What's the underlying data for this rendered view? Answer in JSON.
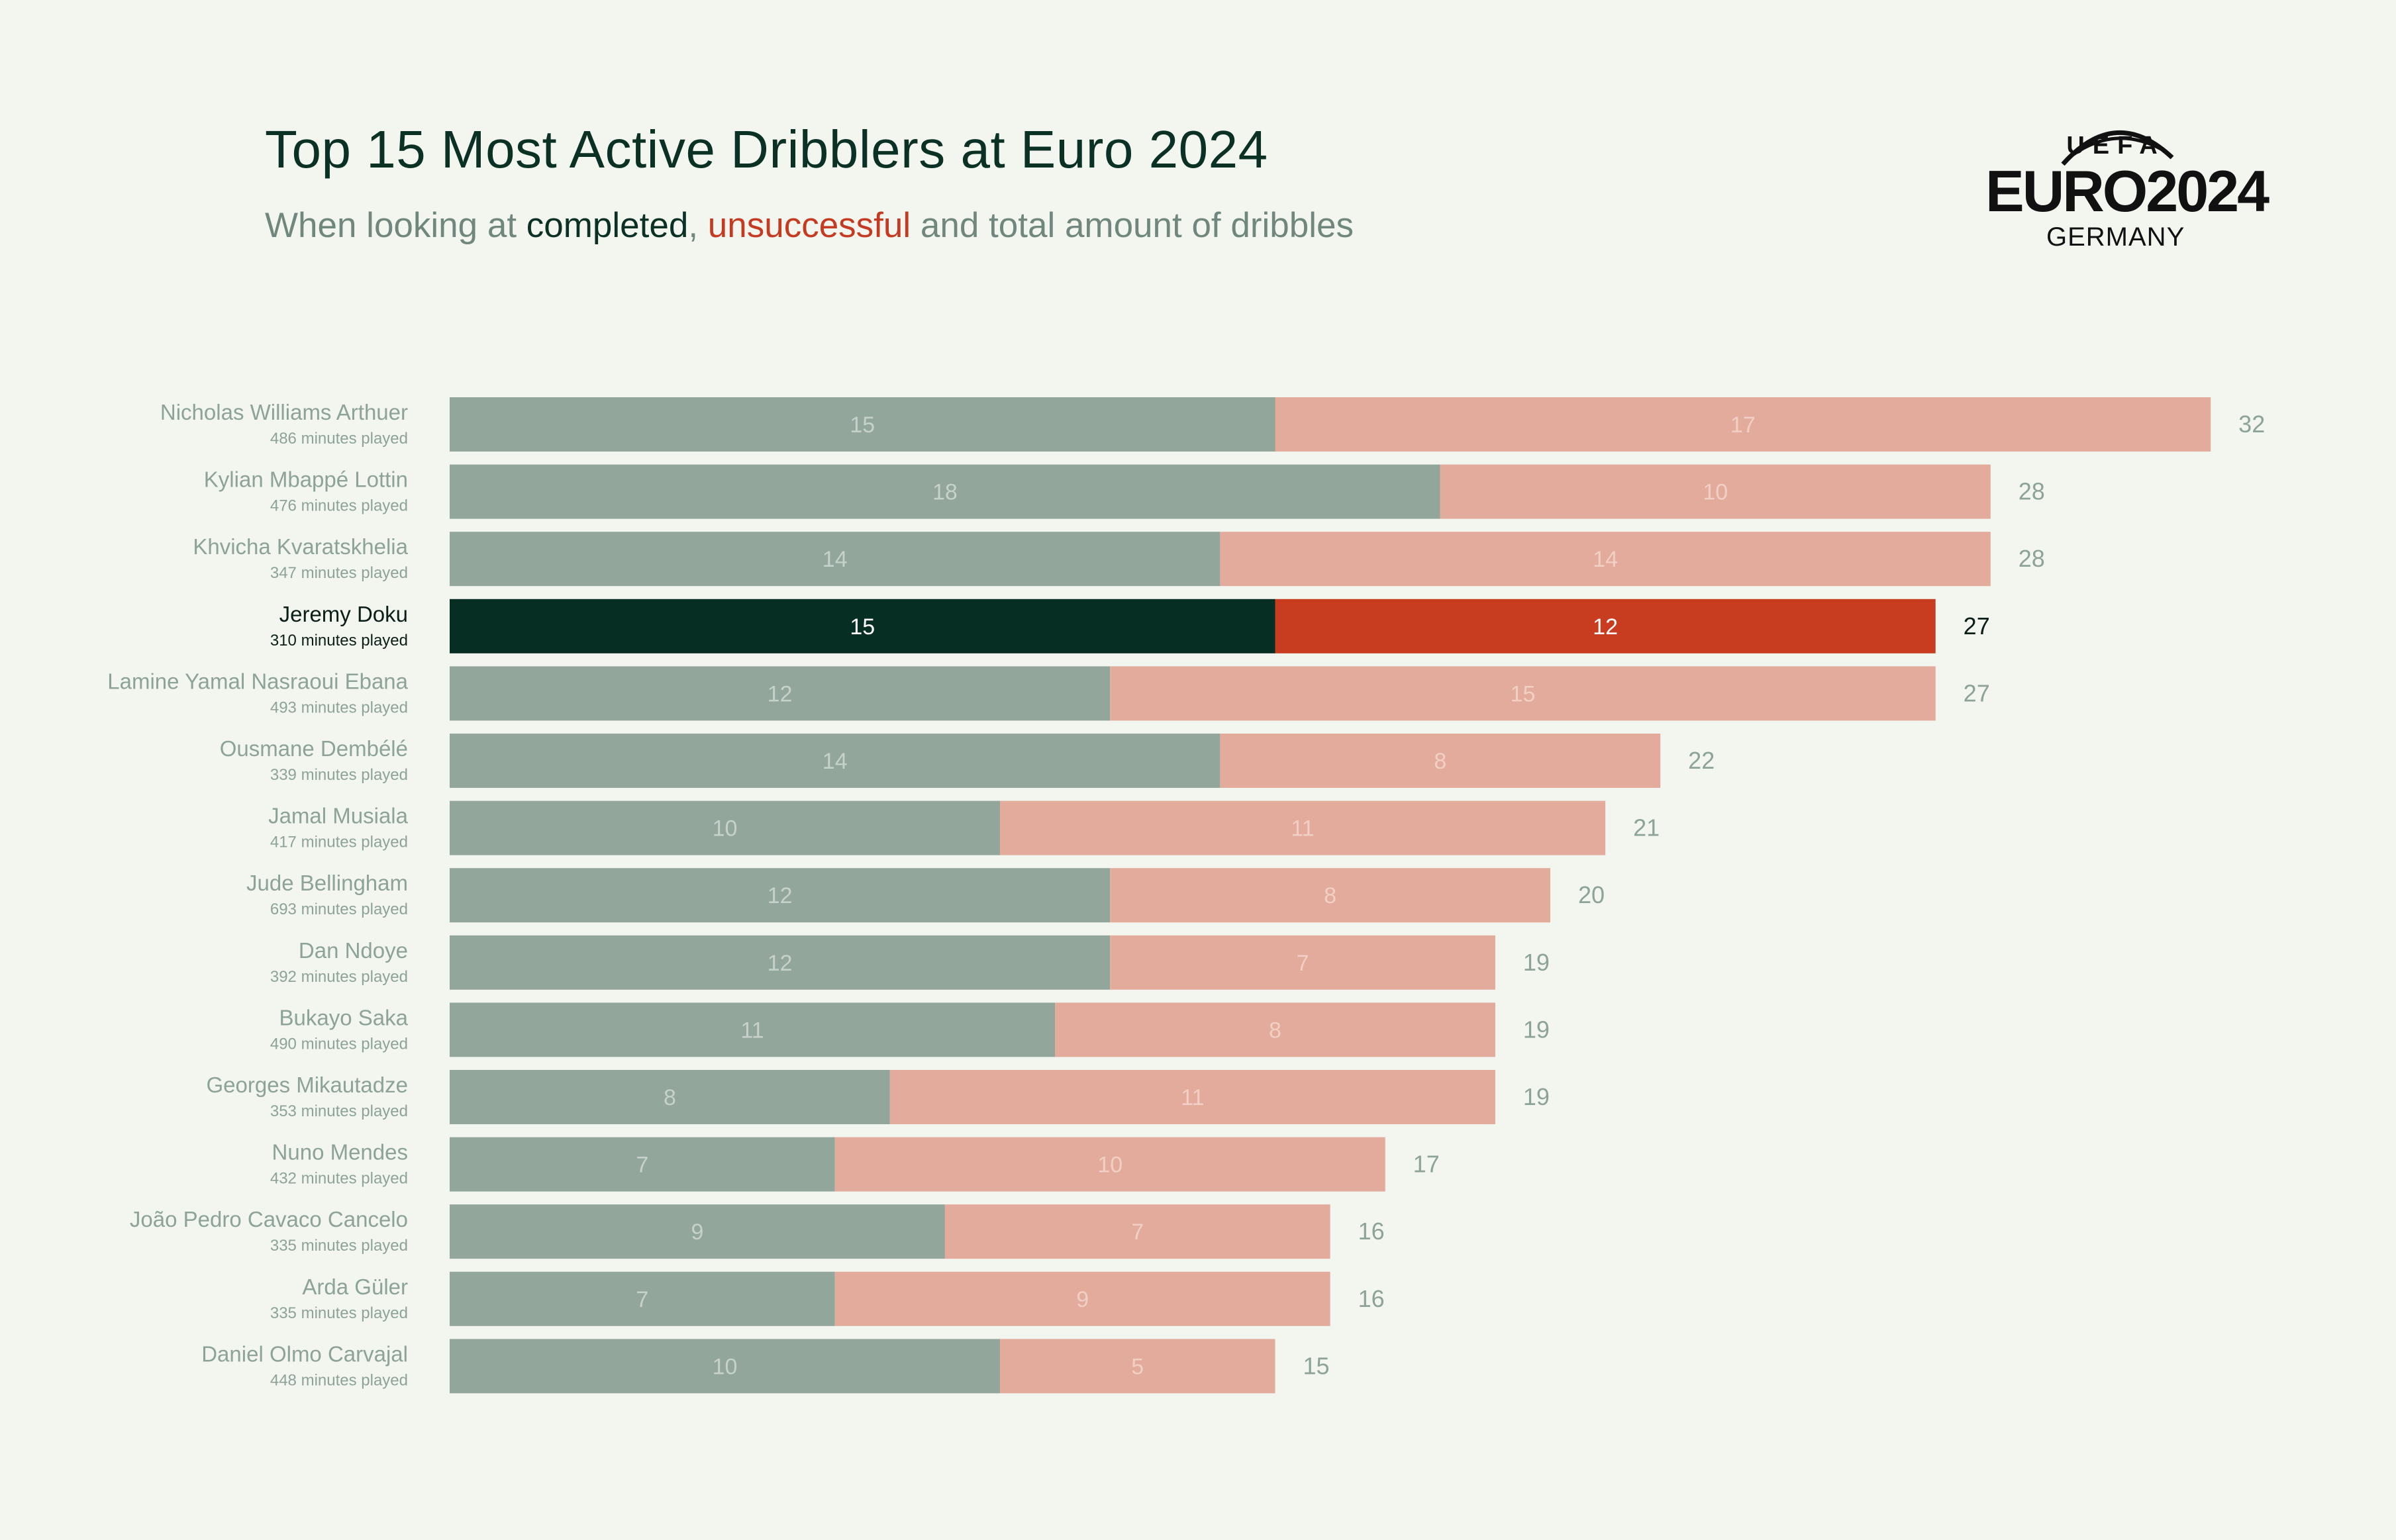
{
  "title": "Top 15 Most Active Dribblers at Euro 2024",
  "subtitle": {
    "prefix": "When looking at ",
    "completed": "completed",
    "comma": ", ",
    "unsuccessful": "unsuccessful",
    "suffix": " and total amount of dribbles"
  },
  "logo": {
    "top": "UEFA",
    "brand": "EURO2024",
    "country": "GERMANY"
  },
  "colors": {
    "background": "#f3f5ef",
    "completed": "#93a69c",
    "unsuccessful": "#e2ab9c",
    "completed_highlight": "#072e23",
    "unsuccessful_highlight": "#c83d20",
    "label_muted": "#8da397",
    "label_highlight": "#0b1f18"
  },
  "chart_data": {
    "type": "bar",
    "orientation": "horizontal",
    "stacked": true,
    "categories": [
      "Nicholas Williams Arthuer",
      "Kylian Mbappé Lottin",
      "Khvicha Kvaratskhelia",
      "Jeremy Doku",
      "Lamine Yamal Nasraoui Ebana",
      "Ousmane Dembélé",
      "Jamal Musiala",
      "Jude Bellingham",
      "Dan Ndoye",
      "Bukayo Saka",
      "Georges Mikautadze",
      "Nuno Mendes",
      "João Pedro Cavaco Cancelo",
      "Arda Güler",
      "Daniel Olmo Carvajal"
    ],
    "minutes_played": [
      "486 minutes played",
      "476 minutes played",
      "347 minutes played",
      "310 minutes played",
      "493 minutes played",
      "339 minutes played",
      "417 minutes played",
      "693 minutes played",
      "392 minutes played",
      "490 minutes played",
      "353 minutes played",
      "432 minutes played",
      "335 minutes played",
      "335 minutes played",
      "448 minutes played"
    ],
    "series": [
      {
        "name": "completed",
        "values": [
          15,
          18,
          14,
          15,
          12,
          14,
          10,
          12,
          12,
          11,
          8,
          7,
          9,
          7,
          10
        ]
      },
      {
        "name": "unsuccessful",
        "values": [
          17,
          10,
          14,
          12,
          15,
          8,
          11,
          8,
          7,
          8,
          11,
          10,
          7,
          9,
          5
        ]
      }
    ],
    "totals": [
      32,
      28,
      28,
      27,
      27,
      22,
      21,
      20,
      19,
      19,
      19,
      17,
      16,
      16,
      15
    ],
    "highlight": "Jeremy Doku",
    "xlim": [
      0,
      32
    ],
    "grid": false,
    "axes_visible": false
  }
}
